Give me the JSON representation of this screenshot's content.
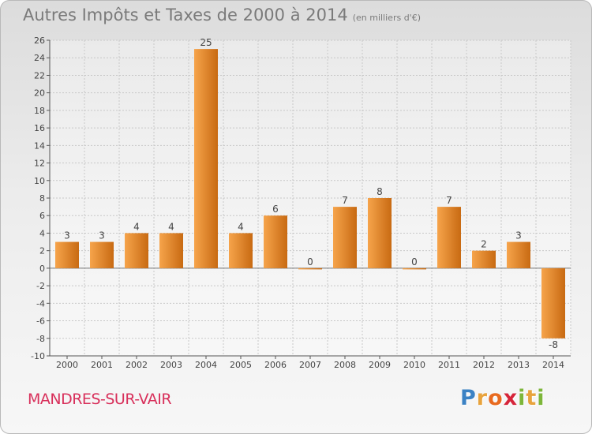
{
  "header": {
    "title": "Autres Impôts et Taxes de 2000 à 2014",
    "subtitle": "(en milliers d'€)"
  },
  "footer": {
    "commune": "MANDRES-SUR-VAIR",
    "logo_letters": [
      {
        "ch": "P",
        "color": "#3b82c4"
      },
      {
        "ch": "r",
        "color": "#e8a33d"
      },
      {
        "ch": "o",
        "color": "#e86a1f"
      },
      {
        "ch": "x",
        "color": "#d6253a"
      },
      {
        "ch": "i",
        "color": "#7db63a"
      },
      {
        "ch": "t",
        "color": "#e8a33d"
      },
      {
        "ch": "i",
        "color": "#7db63a"
      }
    ]
  },
  "chart_data": {
    "type": "bar",
    "categories": [
      "2000",
      "2001",
      "2002",
      "2003",
      "2004",
      "2005",
      "2006",
      "2007",
      "2008",
      "2009",
      "2010",
      "2011",
      "2012",
      "2013",
      "2014"
    ],
    "values": [
      3,
      3,
      4,
      4,
      25,
      4,
      6,
      0,
      7,
      8,
      0,
      7,
      2,
      3,
      -8
    ],
    "data_labels": [
      "3",
      "3",
      "4",
      "4",
      "25",
      "4",
      "6",
      "0",
      "7",
      "8",
      "0",
      "7",
      "2",
      "3",
      "-8"
    ],
    "ylim": [
      -10,
      26
    ],
    "yticks": [
      -10,
      -8,
      -6,
      -4,
      -2,
      0,
      2,
      4,
      6,
      8,
      10,
      12,
      14,
      16,
      18,
      20,
      22,
      24,
      26
    ],
    "grid": true,
    "bar_color_light": "#f6a44b",
    "bar_color_dark": "#c86a12"
  }
}
